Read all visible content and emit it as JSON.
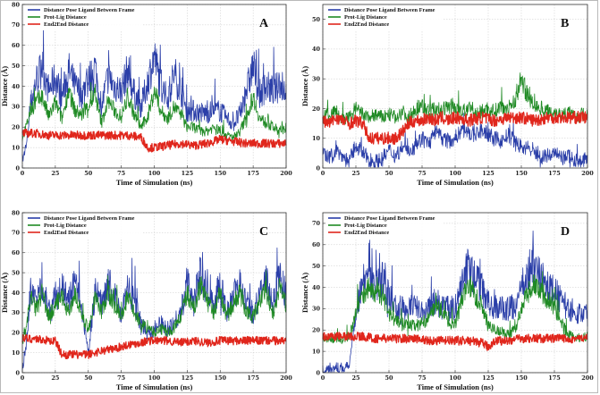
{
  "chart_data": [
    {
      "panel": "A",
      "type": "line",
      "xlabel": "Time of Simulation (ns)",
      "ylabel": "Distance (Å)",
      "xlim": [
        0,
        200
      ],
      "ylim": [
        0,
        80
      ],
      "xticks": [
        0,
        25,
        50,
        75,
        100,
        125,
        150,
        175,
        200
      ],
      "yticks": [
        0,
        10,
        20,
        30,
        40,
        50,
        60,
        70,
        80
      ],
      "grid": true,
      "legend": "top-left",
      "series": [
        {
          "name": "Distance Pose Ligand Between Frame",
          "color": "#2a3ea8",
          "x": [
            0,
            3,
            6,
            10,
            15,
            20,
            25,
            30,
            35,
            40,
            45,
            50,
            55,
            60,
            65,
            70,
            75,
            80,
            85,
            90,
            95,
            100,
            105,
            110,
            115,
            120,
            125,
            130,
            135,
            140,
            145,
            150,
            155,
            160,
            165,
            170,
            175,
            180,
            185,
            190,
            195,
            200
          ],
          "values": [
            3,
            10,
            30,
            42,
            50,
            38,
            44,
            35,
            48,
            40,
            36,
            42,
            50,
            30,
            45,
            40,
            38,
            48,
            36,
            30,
            42,
            55,
            40,
            34,
            46,
            38,
            28,
            28,
            27,
            27,
            28,
            28,
            24,
            22,
            26,
            38,
            50,
            36,
            40,
            38,
            40,
            38
          ]
        },
        {
          "name": "Prot-Lig Distance",
          "color": "#1f8a24",
          "x": [
            0,
            3,
            6,
            10,
            15,
            20,
            25,
            30,
            35,
            40,
            45,
            50,
            55,
            60,
            65,
            70,
            75,
            80,
            85,
            90,
            95,
            100,
            105,
            110,
            115,
            120,
            125,
            130,
            135,
            140,
            145,
            150,
            155,
            160,
            165,
            170,
            175,
            180,
            185,
            190,
            195,
            200
          ],
          "values": [
            15,
            20,
            28,
            32,
            35,
            25,
            32,
            24,
            38,
            28,
            26,
            30,
            36,
            22,
            33,
            28,
            25,
            35,
            26,
            20,
            25,
            38,
            28,
            24,
            30,
            26,
            20,
            20,
            18,
            18,
            20,
            18,
            16,
            15,
            18,
            25,
            35,
            24,
            22,
            20,
            18,
            20
          ]
        },
        {
          "name": "End2End Distance",
          "color": "#e0261c",
          "x": [
            0,
            10,
            20,
            30,
            40,
            50,
            60,
            70,
            80,
            90,
            95,
            100,
            110,
            120,
            130,
            140,
            150,
            160,
            170,
            180,
            190,
            200
          ],
          "values": [
            17,
            17,
            16,
            16,
            16,
            16,
            16,
            16,
            16,
            15,
            10,
            10,
            11,
            12,
            11,
            12,
            14,
            13,
            12,
            12,
            12,
            12
          ]
        }
      ]
    },
    {
      "panel": "B",
      "type": "line",
      "xlabel": "Time of Simulation (ns)",
      "ylabel": "Distance (Å)",
      "xlim": [
        0,
        200
      ],
      "ylim": [
        0,
        55
      ],
      "xticks": [
        0,
        25,
        50,
        75,
        100,
        125,
        150,
        175,
        200
      ],
      "yticks": [
        0,
        10,
        20,
        30,
        40,
        50
      ],
      "grid": true,
      "legend": "top-left",
      "series": [
        {
          "name": "Distance Pose Ligand Between Frame",
          "color": "#2a3ea8",
          "x": [
            0,
            5,
            10,
            15,
            20,
            25,
            30,
            35,
            40,
            45,
            50,
            55,
            60,
            65,
            70,
            75,
            80,
            85,
            90,
            95,
            100,
            105,
            110,
            115,
            120,
            125,
            130,
            135,
            140,
            145,
            150,
            155,
            160,
            165,
            170,
            175,
            180,
            185,
            190,
            195,
            200
          ],
          "values": [
            5,
            3,
            6,
            4,
            2,
            8,
            5,
            3,
            2,
            3,
            6,
            4,
            7,
            5,
            8,
            10,
            8,
            12,
            10,
            9,
            10,
            13,
            12,
            11,
            13,
            11,
            10,
            9,
            11,
            9,
            7,
            6,
            5,
            4,
            4,
            5,
            3,
            4,
            3,
            2,
            3
          ]
        },
        {
          "name": "Prot-Lig Distance",
          "color": "#1f8a24",
          "x": [
            0,
            5,
            10,
            15,
            20,
            25,
            30,
            35,
            40,
            45,
            50,
            55,
            60,
            65,
            70,
            75,
            80,
            85,
            90,
            95,
            100,
            105,
            110,
            115,
            120,
            125,
            130,
            135,
            140,
            145,
            150,
            155,
            160,
            165,
            170,
            175,
            180,
            185,
            190,
            195,
            200
          ],
          "values": [
            17,
            18,
            19,
            16,
            17,
            20,
            18,
            17,
            18,
            17,
            18,
            17,
            19,
            17,
            20,
            21,
            19,
            20,
            19,
            21,
            20,
            19,
            20,
            18,
            19,
            20,
            19,
            21,
            20,
            22,
            30,
            24,
            21,
            20,
            19,
            19,
            18,
            19,
            17,
            18,
            18
          ]
        },
        {
          "name": "End2End Distance",
          "color": "#e0261c",
          "x": [
            0,
            5,
            10,
            15,
            20,
            25,
            30,
            35,
            40,
            45,
            50,
            55,
            60,
            65,
            70,
            75,
            80,
            85,
            90,
            95,
            100,
            110,
            120,
            130,
            140,
            150,
            160,
            170,
            180,
            190,
            200
          ],
          "values": [
            16,
            15,
            17,
            16,
            15,
            16,
            15,
            10,
            10,
            10,
            10,
            10,
            12,
            15,
            16,
            16,
            17,
            16,
            17,
            16,
            17,
            16,
            17,
            16,
            17,
            17,
            16,
            17,
            17,
            17,
            17
          ]
        }
      ]
    },
    {
      "panel": "C",
      "type": "line",
      "xlabel": "Time of Simulation (ns)",
      "ylabel": "Distance (Å)",
      "xlim": [
        0,
        200
      ],
      "ylim": [
        0,
        80
      ],
      "xticks": [
        0,
        25,
        50,
        75,
        100,
        125,
        150,
        175,
        200
      ],
      "yticks": [
        0,
        10,
        20,
        30,
        40,
        50,
        60,
        70,
        80
      ],
      "grid": true,
      "legend": "top-left",
      "series": [
        {
          "name": "Distance Pose Ligand Between Frame",
          "color": "#2a3ea8",
          "x": [
            0,
            3,
            6,
            10,
            15,
            20,
            25,
            30,
            35,
            40,
            45,
            50,
            55,
            60,
            65,
            70,
            75,
            80,
            85,
            90,
            95,
            100,
            105,
            110,
            115,
            120,
            125,
            130,
            135,
            140,
            145,
            150,
            155,
            160,
            165,
            170,
            175,
            180,
            185,
            190,
            195,
            200
          ],
          "values": [
            2,
            15,
            40,
            35,
            45,
            30,
            38,
            42,
            35,
            45,
            30,
            10,
            40,
            35,
            45,
            38,
            30,
            42,
            35,
            25,
            20,
            22,
            24,
            22,
            25,
            30,
            45,
            35,
            50,
            40,
            35,
            45,
            30,
            38,
            44,
            35,
            30,
            40,
            45,
            35,
            50,
            38
          ]
        },
        {
          "name": "Prot-Lig Distance",
          "color": "#1f8a24",
          "x": [
            0,
            3,
            6,
            10,
            15,
            20,
            25,
            30,
            35,
            40,
            45,
            50,
            55,
            60,
            65,
            70,
            75,
            80,
            85,
            90,
            95,
            100,
            105,
            110,
            115,
            120,
            125,
            130,
            135,
            140,
            145,
            150,
            155,
            160,
            165,
            170,
            175,
            180,
            185,
            190,
            195,
            200
          ],
          "values": [
            14,
            22,
            38,
            32,
            40,
            28,
            34,
            38,
            30,
            40,
            28,
            22,
            36,
            30,
            40,
            34,
            28,
            38,
            30,
            24,
            22,
            20,
            22,
            20,
            22,
            28,
            40,
            32,
            44,
            36,
            30,
            40,
            28,
            34,
            40,
            30,
            28,
            36,
            40,
            30,
            44,
            34
          ]
        },
        {
          "name": "End2End Distance",
          "color": "#e0261c",
          "x": [
            0,
            10,
            20,
            25,
            30,
            40,
            50,
            60,
            70,
            80,
            90,
            95,
            100,
            110,
            120,
            130,
            140,
            150,
            160,
            170,
            180,
            190,
            200
          ],
          "values": [
            17,
            17,
            16,
            16,
            9,
            9,
            9,
            11,
            12,
            14,
            15,
            16,
            16,
            16,
            15,
            16,
            15,
            16,
            16,
            16,
            16,
            16,
            16
          ]
        }
      ]
    },
    {
      "panel": "D",
      "type": "line",
      "xlabel": "Time of Simulation (ns)",
      "ylabel": "Distance (Å)",
      "xlim": [
        0,
        200
      ],
      "ylim": [
        0,
        75
      ],
      "xticks": [
        0,
        25,
        50,
        75,
        100,
        125,
        150,
        175,
        200
      ],
      "yticks": [
        0,
        10,
        20,
        30,
        40,
        50,
        60,
        70
      ],
      "grid": true,
      "legend": "top-left",
      "series": [
        {
          "name": "Distance Pose Ligand Between Frame",
          "color": "#2a3ea8",
          "x": [
            0,
            5,
            10,
            15,
            20,
            25,
            30,
            35,
            40,
            45,
            50,
            55,
            60,
            65,
            70,
            75,
            80,
            85,
            90,
            95,
            100,
            105,
            110,
            115,
            120,
            125,
            130,
            135,
            140,
            145,
            150,
            155,
            160,
            165,
            170,
            175,
            180,
            185,
            190,
            195,
            200
          ],
          "values": [
            2,
            2,
            2,
            2,
            3,
            30,
            42,
            45,
            40,
            44,
            35,
            31,
            30,
            30,
            31,
            30,
            32,
            34,
            31,
            30,
            30,
            42,
            50,
            44,
            40,
            32,
            31,
            30,
            30,
            31,
            38,
            45,
            50,
            44,
            40,
            38,
            34,
            30,
            29,
            28,
            27
          ]
        },
        {
          "name": "Prot-Lig Distance",
          "color": "#1f8a24",
          "x": [
            0,
            5,
            10,
            15,
            20,
            25,
            30,
            35,
            40,
            45,
            50,
            55,
            60,
            65,
            70,
            75,
            80,
            85,
            90,
            95,
            100,
            105,
            110,
            115,
            120,
            125,
            130,
            135,
            140,
            145,
            150,
            155,
            160,
            165,
            170,
            175,
            180,
            185,
            190,
            195,
            200
          ],
          "values": [
            16,
            16,
            16,
            16,
            17,
            28,
            36,
            40,
            38,
            36,
            28,
            24,
            23,
            22,
            22,
            23,
            26,
            32,
            28,
            24,
            22,
            34,
            42,
            36,
            32,
            22,
            20,
            19,
            18,
            20,
            30,
            38,
            42,
            38,
            34,
            30,
            24,
            18,
            17,
            16,
            17
          ]
        },
        {
          "name": "End2End Distance",
          "color": "#e0261c",
          "x": [
            0,
            10,
            20,
            30,
            40,
            50,
            60,
            70,
            80,
            90,
            100,
            110,
            120,
            125,
            130,
            140,
            150,
            160,
            170,
            180,
            190,
            200
          ],
          "values": [
            17,
            17,
            17,
            17,
            16,
            16,
            16,
            16,
            15,
            15,
            15,
            15,
            14,
            12,
            15,
            15,
            16,
            16,
            16,
            16,
            16,
            16
          ]
        }
      ]
    }
  ]
}
